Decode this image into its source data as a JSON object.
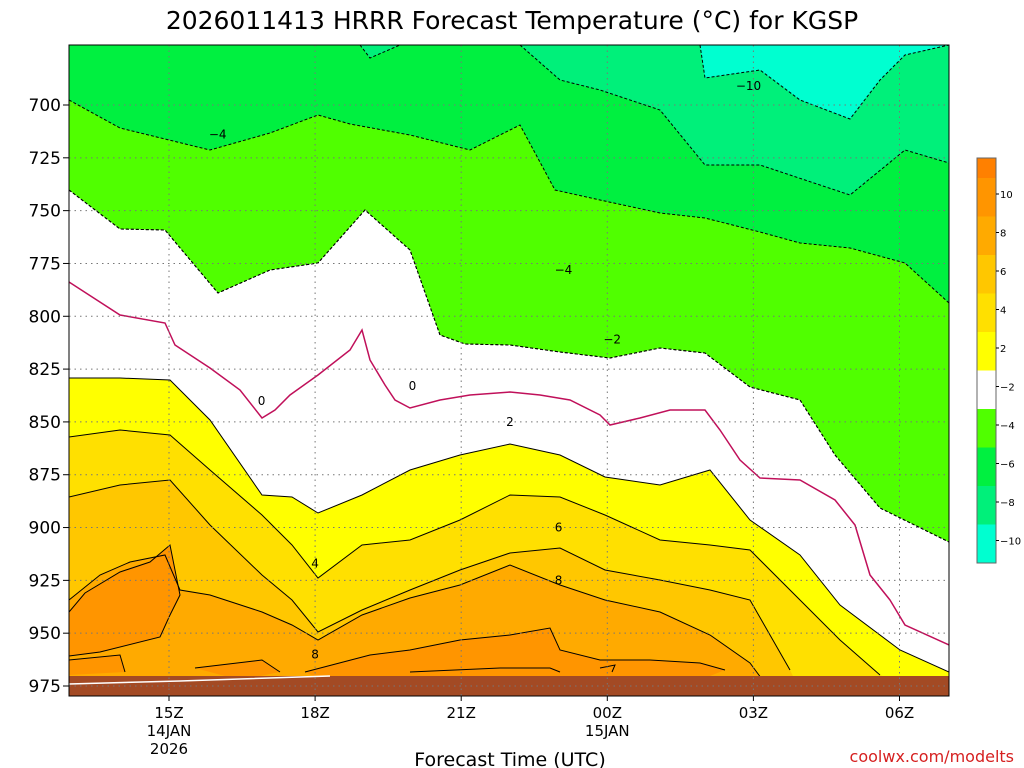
{
  "chart_data": {
    "type": "contour",
    "title": "2026011413 HRRR Forecast Temperature (°C) for KGSP",
    "xlabel": "Forecast Time (UTC)",
    "ylabel": "",
    "credit": "coolwx.com/modelts",
    "y_ticks": [
      700,
      725,
      750,
      775,
      800,
      825,
      850,
      875,
      900,
      925,
      950,
      975
    ],
    "x_ticks": [
      {
        "hour": 15,
        "label": "15Z",
        "date": "14JAN",
        "year": "2026"
      },
      {
        "hour": 18,
        "label": "18Z"
      },
      {
        "hour": 21,
        "label": "21Z"
      },
      {
        "hour": 24,
        "label": "00Z",
        "date": "15JAN"
      },
      {
        "hour": 27,
        "label": "03Z"
      },
      {
        "hour": 30,
        "label": "06Z"
      }
    ],
    "colorbar_levels": [
      {
        "label": "10",
        "color": "#ff9500"
      },
      {
        "label": "8",
        "color": "#ffaa00"
      },
      {
        "label": "6",
        "color": "#ffc700"
      },
      {
        "label": "4",
        "color": "#ffe000"
      },
      {
        "label": "2",
        "color": "#ffff00"
      },
      {
        "label": "−2",
        "color": "#ffffff"
      },
      {
        "label": "−4",
        "color": "#50ff00"
      },
      {
        "label": "−6",
        "color": "#00f040"
      },
      {
        "label": "−8",
        "color": "#00f07a"
      },
      {
        "label": "−10",
        "color": "#00f0a8"
      }
    ],
    "contour_labels": [
      {
        "text": "−4",
        "hour": 16.0,
        "p": 714
      },
      {
        "text": "−10",
        "hour": 26.9,
        "p": 691
      },
      {
        "text": "−4",
        "hour": 23.1,
        "p": 778
      },
      {
        "text": "−2",
        "hour": 24.1,
        "p": 811
      },
      {
        "text": "0",
        "hour": 16.9,
        "p": 840
      },
      {
        "text": "0",
        "hour": 20.0,
        "p": 833
      },
      {
        "text": "2",
        "hour": 22.0,
        "p": 850
      },
      {
        "text": "6",
        "hour": 23.0,
        "p": 900
      },
      {
        "text": "4",
        "hour": 18.0,
        "p": 917
      },
      {
        "text": "8",
        "hour": 23.0,
        "p": 925
      },
      {
        "text": "8",
        "hour": 18.0,
        "p": 960
      }
    ]
  }
}
